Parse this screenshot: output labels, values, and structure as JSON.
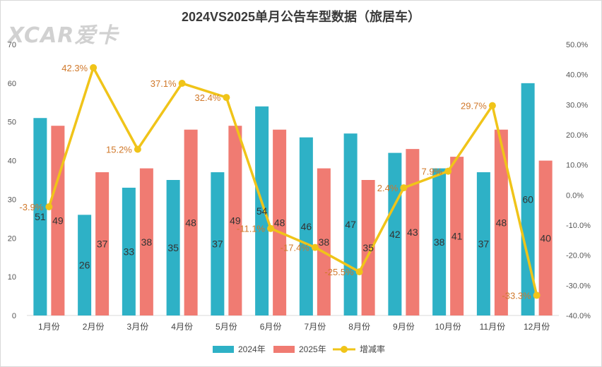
{
  "watermark": "XCAR爱卡",
  "chart_data": {
    "type": "bar",
    "title": "2024VS2025单月公告车型数据（旅居车）",
    "categories": [
      "1月份",
      "2月份",
      "3月份",
      "4月份",
      "5月份",
      "6月份",
      "7月份",
      "8月份",
      "9月份",
      "10月份",
      "11月份",
      "12月份"
    ],
    "series": [
      {
        "name": "2024年",
        "type": "bar",
        "axis": "left",
        "color": "#2eb1c6",
        "values": [
          51,
          26,
          33,
          35,
          37,
          54,
          46,
          47,
          42,
          38,
          37,
          60
        ],
        "labels": [
          "51",
          "26",
          "33",
          "35",
          "37",
          "54",
          "46",
          "47",
          "42",
          "38",
          "37",
          "60"
        ]
      },
      {
        "name": "2025年",
        "type": "bar",
        "axis": "left",
        "color": "#f07b72",
        "values": [
          49,
          37,
          38,
          48,
          49,
          48,
          38,
          35,
          43,
          41,
          48,
          40
        ],
        "labels": [
          "49",
          "37",
          "38",
          "48",
          "49",
          "48",
          "38",
          "35",
          "43",
          "41",
          "48",
          "40"
        ]
      },
      {
        "name": "增减率",
        "type": "line",
        "axis": "right",
        "color": "#f0c419",
        "values": [
          -3.9,
          42.3,
          15.2,
          37.1,
          32.4,
          -11.1,
          -17.4,
          -25.5,
          2.4,
          7.9,
          29.7,
          -33.3
        ],
        "labels": [
          "-3.9%",
          "42.3%",
          "15.2%",
          "37.1%",
          "32.4%",
          "-11.1%",
          "-17.4%",
          "-25.5%",
          "2.4%",
          "7.9%",
          "29.7%",
          "-33.3%"
        ],
        "label_color": "#d0782a"
      }
    ],
    "ylim_left": [
      0,
      70
    ],
    "left_ticks": [
      "0",
      "10",
      "20",
      "30",
      "40",
      "50",
      "60",
      "70"
    ],
    "ylim_right": [
      -40,
      50
    ],
    "right_ticks": [
      "-40.0%",
      "-30.0%",
      "-20.0%",
      "-10.0%",
      "0.0%",
      "10.0%",
      "20.0%",
      "30.0%",
      "40.0%",
      "50.0%"
    ],
    "grid": false,
    "legend_position": "bottom"
  }
}
